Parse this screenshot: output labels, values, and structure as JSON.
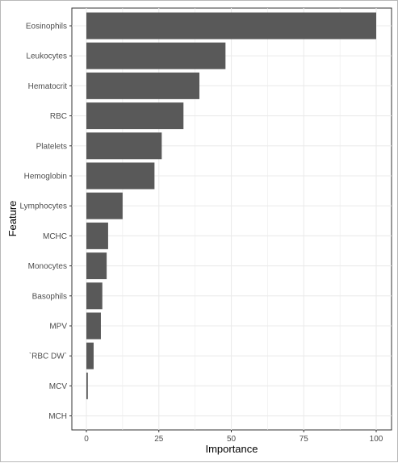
{
  "chart_data": {
    "type": "bar",
    "orientation": "horizontal",
    "xlabel": "Importance",
    "ylabel": "Feature",
    "xlim": [
      0,
      100
    ],
    "x_ticks": [
      0,
      25,
      50,
      75,
      100
    ],
    "grid": true,
    "bar_color": "#595959",
    "grid_color": "#ebebeb",
    "categories": [
      "Eosinophils",
      "Leukocytes",
      "Hematocrit",
      "RBC",
      "Platelets",
      "Hemoglobin",
      "Lymphocytes",
      "MCHC",
      "Monocytes",
      "Basophils",
      "MPV",
      "`RBC DW`",
      "MCV",
      "MCH"
    ],
    "values": [
      100,
      48,
      39,
      33.5,
      26,
      23.5,
      12.5,
      7.5,
      7,
      5.5,
      5,
      2.5,
      0.5,
      0
    ]
  }
}
